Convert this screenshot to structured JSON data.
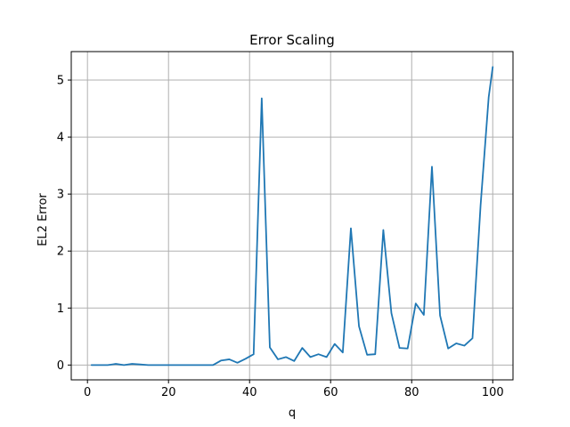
{
  "chart_data": {
    "type": "line",
    "title": "Error Scaling",
    "xlabel": "q",
    "ylabel": "EL2 Error",
    "xlim": [
      -4,
      105
    ],
    "ylim": [
      -0.26,
      5.5
    ],
    "xticks": [
      0,
      20,
      40,
      60,
      80,
      100
    ],
    "yticks": [
      0,
      1,
      2,
      3,
      4,
      5
    ],
    "grid": true,
    "series": [
      {
        "color": "#1f77b4",
        "x": [
          1,
          3,
          5,
          7,
          9,
          11,
          13,
          15,
          17,
          19,
          21,
          23,
          25,
          27,
          29,
          31,
          33,
          35,
          37,
          39,
          41,
          43,
          45,
          47,
          49,
          51,
          53,
          55,
          57,
          59,
          61,
          63,
          65,
          67,
          69,
          71,
          73,
          75,
          77,
          79,
          81,
          83,
          85,
          87,
          89,
          91,
          93,
          95,
          97,
          99,
          100
        ],
        "y": [
          0.0,
          0.0,
          0.0,
          0.02,
          0.0,
          0.02,
          0.01,
          0.0,
          0.0,
          0.0,
          0.0,
          0.0,
          0.0,
          0.0,
          0.0,
          0.0,
          0.08,
          0.1,
          0.04,
          0.11,
          0.19,
          4.68,
          0.31,
          0.1,
          0.14,
          0.07,
          0.3,
          0.14,
          0.19,
          0.14,
          0.37,
          0.22,
          2.4,
          0.68,
          0.18,
          0.19,
          2.37,
          0.91,
          0.3,
          0.29,
          1.08,
          0.88,
          3.48,
          0.87,
          0.29,
          0.38,
          0.34,
          0.47,
          2.8,
          4.7,
          5.23
        ]
      }
    ]
  }
}
